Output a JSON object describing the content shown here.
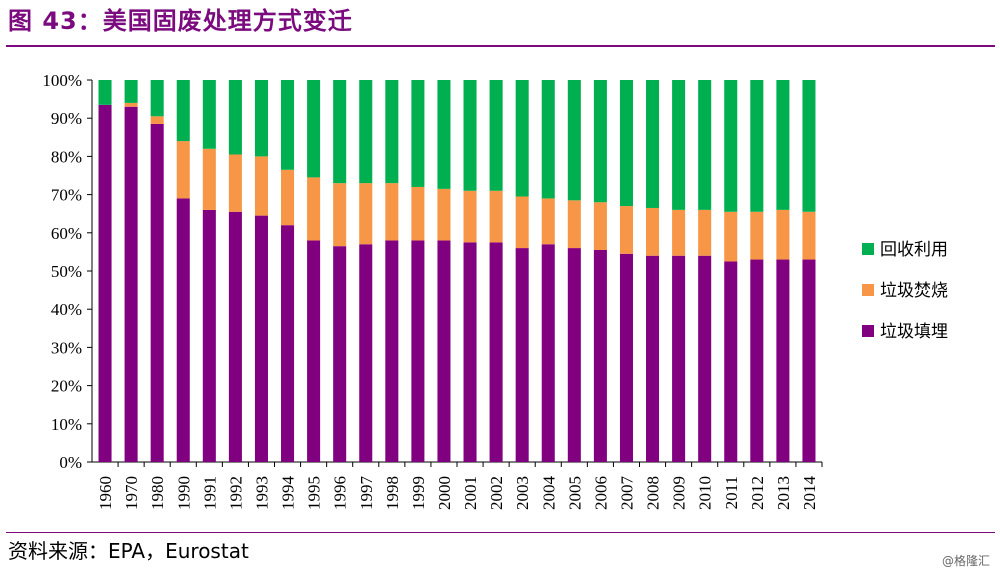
{
  "header": {
    "title": "图 43：美国固废处理方式变迁"
  },
  "footer": {
    "source": "资料来源：EPA，Eurostat",
    "watermark": "@格隆汇"
  },
  "chart_data": {
    "type": "bar",
    "stacked": true,
    "categories": [
      "1960",
      "1970",
      "1980",
      "1990",
      "1991",
      "1992",
      "1993",
      "1994",
      "1995",
      "1996",
      "1997",
      "1998",
      "1999",
      "2000",
      "2001",
      "2002",
      "2003",
      "2004",
      "2005",
      "2006",
      "2007",
      "2008",
      "2009",
      "2010",
      "2011",
      "2012",
      "2013",
      "2014"
    ],
    "series": [
      {
        "name": "垃圾填埋",
        "color": "#800080",
        "values": [
          93.5,
          93,
          88.5,
          69,
          66,
          65.5,
          64.5,
          62,
          58,
          56.5,
          57,
          58,
          58,
          58,
          57.5,
          57.5,
          56,
          57,
          56,
          55.5,
          54.5,
          54,
          54,
          54,
          52.5,
          53,
          53,
          53
        ]
      },
      {
        "name": "垃圾焚烧",
        "color": "#f79646",
        "values": [
          0,
          1,
          2,
          15,
          16,
          15,
          15.5,
          14.5,
          16.5,
          16.5,
          16,
          15,
          14,
          13.5,
          13.5,
          13.5,
          13.5,
          12,
          12.5,
          12.5,
          12.5,
          12.5,
          12,
          12,
          13,
          12.5,
          13,
          12.5
        ]
      },
      {
        "name": "回收利用",
        "color": "#00b050",
        "values": [
          6.5,
          6,
          9.5,
          16,
          18,
          19.5,
          20,
          23.5,
          25.5,
          27,
          27,
          27,
          28,
          28.5,
          29,
          29,
          30.5,
          31,
          31.5,
          32,
          33,
          33.5,
          34,
          34,
          34.5,
          34.5,
          34,
          34.5
        ]
      }
    ],
    "y_ticks": [
      "0%",
      "10%",
      "20%",
      "30%",
      "40%",
      "50%",
      "60%",
      "70%",
      "80%",
      "90%",
      "100%"
    ],
    "ylim": [
      0,
      100
    ],
    "y_unit": "%",
    "xlabel": "",
    "ylabel": "",
    "legend_position": "right",
    "legend_order": [
      "回收利用",
      "垃圾焚烧",
      "垃圾填埋"
    ],
    "grid": false
  }
}
